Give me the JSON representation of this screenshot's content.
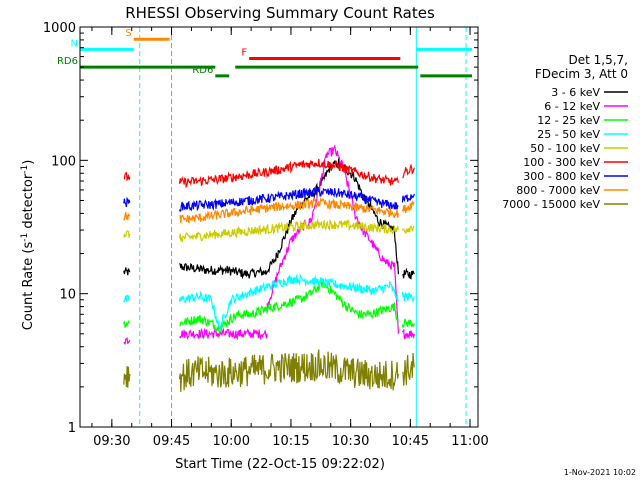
{
  "chart_data": {
    "type": "line",
    "title": "RHESSI Observing Summary Count Rates",
    "xlabel": "Start Time (22-Oct-15 09:22:02)",
    "ylabel_main": "Count Rate (s",
    "ylabel_sup1": "-1",
    "ylabel_mid": " detector",
    "ylabel_sup2": "-1",
    "ylabel_end": ")",
    "x_unit": "minutes from 09:22:02",
    "xlim": [
      0,
      100
    ],
    "ylim": [
      1,
      1000
    ],
    "yscale": "log",
    "x_ticks": [
      {
        "label": "09:30",
        "t": 8
      },
      {
        "label": "09:45",
        "t": 23
      },
      {
        "label": "10:00",
        "t": 38
      },
      {
        "label": "10:15",
        "t": 53
      },
      {
        "label": "10:30",
        "t": 68
      },
      {
        "label": "10:45",
        "t": 83
      },
      {
        "label": "11:00",
        "t": 98
      }
    ],
    "y_ticks": [
      {
        "label": "1",
        "v": 1
      },
      {
        "label": "10",
        "v": 10
      },
      {
        "label": "100",
        "v": 100
      },
      {
        "label": "1000",
        "v": 1000
      }
    ],
    "legend": {
      "header1": "Det 1,5,7,",
      "header2": "FDecim 3, Att 0",
      "placement": "right"
    },
    "series": [
      {
        "name": "3 - 6 keV",
        "color": "#000000",
        "segments": [
          {
            "x": [
              11.0,
              12.5
            ],
            "y": [
              14.5,
              14.5
            ]
          },
          {
            "x": [
              25.0,
              32.0,
              37.0,
              42.0,
              45.0,
              47.0
            ],
            "y": [
              16,
              15,
              15,
              14,
              14.5,
              14.5
            ]
          },
          {
            "x": [
              47.0,
              49.0,
              51.0,
              53.0,
              55.0,
              57.0,
              59.0,
              61.0,
              63.0,
              65.0,
              67.0,
              69.0,
              71.0,
              73.0,
              75.0,
              77.0,
              79.0,
              80.0
            ],
            "y": [
              15,
              18,
              25,
              35,
              45,
              52,
              58,
              70,
              90,
              95,
              85,
              75,
              55,
              45,
              35,
              32,
              30,
              14
            ]
          },
          {
            "x": [
              81.0,
              84.0
            ],
            "y": [
              14,
              14
            ]
          }
        ]
      },
      {
        "name": "6 - 12 keV",
        "color": "#ff00ff",
        "segments": [
          {
            "x": [
              11.0,
              12.5
            ],
            "y": [
              4.5,
              4.5
            ]
          },
          {
            "x": [
              25.0,
              32.0,
              37.0,
              42.0,
              45.0,
              47.0
            ],
            "y": [
              5.0,
              5.0,
              5.0,
              5.0,
              5.0,
              5.0
            ]
          },
          {
            "x": [
              47.0,
              50.0,
              53.0,
              56.0,
              58.0,
              60.0,
              62.0,
              64.0,
              66.0,
              67.0,
              68.0,
              69.0,
              71.0,
              73.0,
              75.0,
              77.0,
              79.0,
              80.0
            ],
            "y": [
              8,
              15,
              25,
              32,
              35,
              60,
              110,
              120,
              90,
              70,
              55,
              40,
              30,
              25,
              20,
              17,
              16,
              5
            ]
          },
          {
            "x": [
              81.0,
              84.0
            ],
            "y": [
              5.0,
              5.0
            ]
          }
        ]
      },
      {
        "name": "12 - 25 keV",
        "color": "#00ff00",
        "segments": [
          {
            "x": [
              11.0,
              12.5
            ],
            "y": [
              6.0,
              6.0
            ]
          },
          {
            "x": [
              25.0,
              30.0,
              33.0,
              35.0,
              38.0,
              40.0,
              43.0,
              46.0,
              49.0,
              52.0,
              55.0,
              58.0,
              61.0,
              64.0,
              67.0,
              70.0,
              73.0,
              76.0,
              79.0,
              80.0
            ],
            "y": [
              6.0,
              6.5,
              6.0,
              5.5,
              6.5,
              7.0,
              7.0,
              7.5,
              8.0,
              8.5,
              9.0,
              10.0,
              12.0,
              10.0,
              8.0,
              7.0,
              7.0,
              7.5,
              8.0,
              6.0
            ]
          },
          {
            "x": [
              81.0,
              84.0
            ],
            "y": [
              6.0,
              6.0
            ]
          }
        ]
      },
      {
        "name": "25 - 50 keV",
        "color": "#00ffff",
        "segments": [
          {
            "x": [
              11.0,
              12.5
            ],
            "y": [
              9.0,
              9.0
            ]
          },
          {
            "x": [
              25.0,
              30.0,
              33.0,
              35.0,
              38.0,
              42.0,
              46.0,
              50.0,
              54.0,
              58.0,
              62.0,
              66.0,
              70.0,
              74.0,
              78.0,
              80.0
            ],
            "y": [
              9.0,
              9.5,
              9.0,
              5.5,
              9.0,
              10.0,
              11.0,
              12.0,
              13.0,
              12.5,
              12.0,
              11.5,
              11.0,
              10.5,
              11.5,
              9.0
            ]
          },
          {
            "x": [
              81.0,
              84.0
            ],
            "y": [
              9.5,
              9.5
            ]
          }
        ]
      },
      {
        "name": "50 - 100 keV",
        "color": "#cccc00",
        "segments": [
          {
            "x": [
              11.0,
              12.5
            ],
            "y": [
              28,
              28
            ]
          },
          {
            "x": [
              25.0,
              30.0,
              35.0,
              40.0,
              45.0,
              50.0,
              55.0,
              60.0,
              65.0,
              70.0,
              75.0,
              80.0
            ],
            "y": [
              26,
              27,
              28,
              29,
              30,
              31,
              32,
              33,
              33,
              32,
              31,
              30
            ]
          },
          {
            "x": [
              81.0,
              84.0
            ],
            "y": [
              30,
              32
            ]
          }
        ]
      },
      {
        "name": "100 - 300 keV",
        "color": "#ff0000",
        "segments": [
          {
            "x": [
              11.0,
              12.5
            ],
            "y": [
              75,
              75
            ]
          },
          {
            "x": [
              25.0,
              30.0,
              35.0,
              40.0,
              45.0,
              50.0,
              55.0,
              60.0,
              65.0,
              70.0,
              75.0,
              80.0
            ],
            "y": [
              68,
              70,
              72,
              76,
              80,
              85,
              92,
              96,
              90,
              80,
              72,
              68
            ]
          },
          {
            "x": [
              81.0,
              84.0
            ],
            "y": [
              80,
              88
            ]
          }
        ]
      },
      {
        "name": "300 - 800 keV",
        "color": "#0000ff",
        "segments": [
          {
            "x": [
              11.0,
              12.5
            ],
            "y": [
              48,
              48
            ]
          },
          {
            "x": [
              25.0,
              30.0,
              35.0,
              40.0,
              45.0,
              50.0,
              55.0,
              60.0,
              65.0,
              70.0,
              75.0,
              80.0
            ],
            "y": [
              45,
              46,
              47,
              49,
              51,
              53,
              56,
              58,
              57,
              53,
              48,
              45
            ]
          },
          {
            "x": [
              81.0,
              84.0
            ],
            "y": [
              50,
              56
            ]
          }
        ]
      },
      {
        "name": "800 - 7000 keV",
        "color": "#ff8800",
        "segments": [
          {
            "x": [
              11.0,
              12.5
            ],
            "y": [
              38,
              38
            ]
          },
          {
            "x": [
              25.0,
              30.0,
              35.0,
              40.0,
              45.0,
              50.0,
              55.0,
              60.0,
              65.0,
              70.0,
              75.0,
              80.0
            ],
            "y": [
              36,
              37,
              39,
              41,
              43,
              45,
              46,
              48,
              46,
              44,
              42,
              40
            ]
          },
          {
            "x": [
              81.0,
              84.0
            ],
            "y": [
              42,
              48
            ]
          }
        ]
      },
      {
        "name": "7000 - 15000 keV",
        "color": "#808000",
        "segments": [
          {
            "x": [
              11.0,
              12.5
            ],
            "y": [
              2.5,
              2.5
            ]
          },
          {
            "x": [
              25.0,
              30.0,
              35.0,
              40.0,
              45.0,
              50.0,
              55.0,
              60.0,
              65.0,
              70.0,
              75.0,
              80.0
            ],
            "y": [
              2.4,
              2.6,
              2.5,
              2.6,
              2.7,
              2.8,
              2.8,
              2.9,
              2.7,
              2.5,
              2.4,
              2.5
            ]
          },
          {
            "x": [
              81.0,
              84.0
            ],
            "y": [
              2.6,
              2.8
            ]
          }
        ]
      }
    ],
    "flags": [
      {
        "label": "S",
        "color": "#ff8800",
        "x0": 13.5,
        "x1": 22.5,
        "y": 810
      },
      {
        "label": "N",
        "color": "#00ffff",
        "x0": 0,
        "x1": 13.5,
        "y": 680
      },
      {
        "label": "",
        "color": "#00ffff",
        "x0": 84.5,
        "x1": 98.5,
        "y": 680
      },
      {
        "label": "RD6",
        "color": "#008000",
        "x0": 0,
        "x1": 34.0,
        "y": 500
      },
      {
        "label": "RD6",
        "color": "#008000",
        "x0": 34.0,
        "x1": 37.5,
        "y": 430
      },
      {
        "label": "",
        "color": "#008000",
        "x0": 39.0,
        "x1": 85.0,
        "y": 500
      },
      {
        "label": "",
        "color": "#008000",
        "x0": 85.5,
        "x1": 98.5,
        "y": 430
      },
      {
        "label": "F",
        "color": "#ff0000",
        "x0": 42.5,
        "x1": 80.5,
        "y": 580
      }
    ],
    "vlines": [
      {
        "x": 15.0,
        "color": "#00ffff",
        "style": "dashed"
      },
      {
        "x": 23.0,
        "color": "#ff8800",
        "style": "dashed"
      },
      {
        "x": 84.5,
        "color": "#00ffff",
        "style": "solid"
      },
      {
        "x": 97.0,
        "color": "#00ffff",
        "style": "dashed"
      }
    ],
    "footer": "1-Nov-2021 10:02"
  }
}
